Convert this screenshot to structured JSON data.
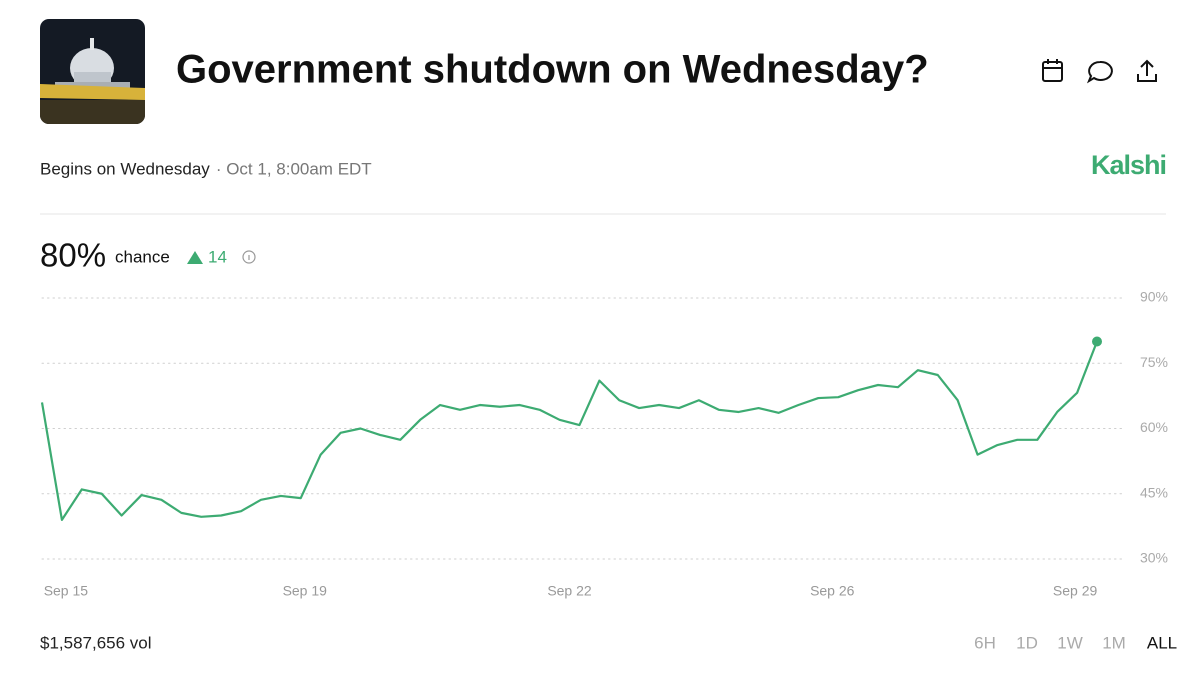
{
  "header": {
    "title": "Government shutdown on Wednesday?",
    "subtitle": "Begins on Wednesday",
    "date": "· Oct 1, 8:00am EDT",
    "brand": "Kalshi"
  },
  "summary": {
    "chance": "80%",
    "chance_label": "chance",
    "change": "14"
  },
  "chart_data": {
    "type": "line",
    "series": [
      {
        "color": "#3dab72",
        "values": [
          66,
          39,
          46,
          45,
          40,
          44.7,
          43.6,
          40.6,
          39.7,
          40,
          41,
          43.6,
          44.5,
          44,
          54,
          59,
          60,
          58.5,
          57.4,
          62,
          65.4,
          64.3,
          65.4,
          65,
          65.4,
          64.3,
          62,
          60.8,
          71,
          66.5,
          64.7,
          65.4,
          64.7,
          66.5,
          64.3,
          63.8,
          64.7,
          63.6,
          65.4,
          67,
          67.2,
          68.8,
          70,
          69.5,
          73.4,
          72.3,
          66.5,
          54,
          56.2,
          57.4,
          57.4,
          63.8,
          68.2,
          80
        ]
      }
    ],
    "xlim": [
      0,
      53
    ],
    "xticks": [
      {
        "value": 1.2,
        "label": "Sep 15"
      },
      {
        "value": 13.2,
        "label": "Sep 19"
      },
      {
        "value": 26.5,
        "label": "Sep 22"
      },
      {
        "value": 39.7,
        "label": "Sep 26"
      },
      {
        "value": 51.9,
        "label": "Sep 29"
      }
    ],
    "ylim": [
      30,
      90
    ],
    "yticks": [
      {
        "value": 30,
        "label": "30%"
      },
      {
        "value": 45,
        "label": "45%"
      },
      {
        "value": 60,
        "label": "60%"
      },
      {
        "value": 75,
        "label": "75%"
      },
      {
        "value": 90,
        "label": "90%"
      }
    ],
    "grid": true
  },
  "footer": {
    "volume": "$1,587,656 vol",
    "ranges": [
      "6H",
      "1D",
      "1W",
      "1M",
      "ALL"
    ],
    "active_range": 4
  }
}
